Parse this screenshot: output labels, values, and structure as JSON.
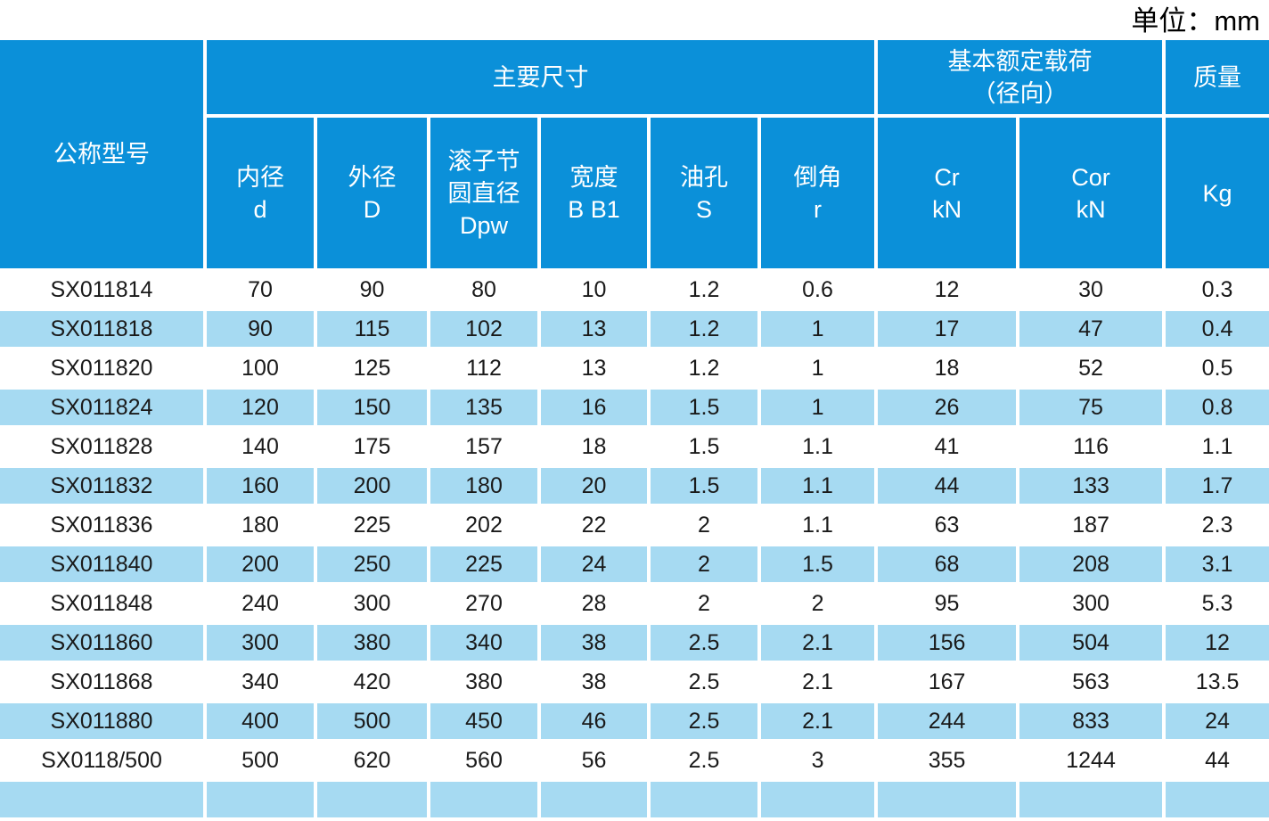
{
  "unit_label": "单位：mm",
  "colors": {
    "header_blue": "#0b90d9",
    "stripe_blue": "#a6daf2",
    "data_text": "#1a1a1a"
  },
  "table": {
    "header": {
      "model_label": "公称型号",
      "groups": [
        {
          "label": "主要尺寸"
        },
        {
          "label": "基本额定载荷（径向）",
          "lines": [
            "基本额定载荷",
            "（径向）"
          ]
        },
        {
          "label": "质量"
        }
      ],
      "sub_columns": [
        {
          "lines": [
            "内径",
            "d"
          ]
        },
        {
          "lines": [
            "外径",
            "D"
          ]
        },
        {
          "lines": [
            "滚子节",
            "圆直径",
            "Dpw"
          ]
        },
        {
          "lines": [
            "宽度",
            "B B1"
          ]
        },
        {
          "lines": [
            "油孔",
            "S"
          ]
        },
        {
          "lines": [
            "倒角",
            "r"
          ]
        },
        {
          "lines": [
            "Cr",
            "kN"
          ]
        },
        {
          "lines": [
            "Cor",
            "kN"
          ]
        },
        {
          "lines": [
            "Kg"
          ]
        }
      ]
    },
    "rows": [
      [
        "SX011814",
        "70",
        "90",
        "80",
        "10",
        "1.2",
        "0.6",
        "12",
        "30",
        "0.3"
      ],
      [
        "SX011818",
        "90",
        "115",
        "102",
        "13",
        "1.2",
        "1",
        "17",
        "47",
        "0.4"
      ],
      [
        "SX011820",
        "100",
        "125",
        "112",
        "13",
        "1.2",
        "1",
        "18",
        "52",
        "0.5"
      ],
      [
        "SX011824",
        "120",
        "150",
        "135",
        "16",
        "1.5",
        "1",
        "26",
        "75",
        "0.8"
      ],
      [
        "SX011828",
        "140",
        "175",
        "157",
        "18",
        "1.5",
        "1.1",
        "41",
        "116",
        "1.1"
      ],
      [
        "SX011832",
        "160",
        "200",
        "180",
        "20",
        "1.5",
        "1.1",
        "44",
        "133",
        "1.7"
      ],
      [
        "SX011836",
        "180",
        "225",
        "202",
        "22",
        "2",
        "1.1",
        "63",
        "187",
        "2.3"
      ],
      [
        "SX011840",
        "200",
        "250",
        "225",
        "24",
        "2",
        "1.5",
        "68",
        "208",
        "3.1"
      ],
      [
        "SX011848",
        "240",
        "300",
        "270",
        "28",
        "2",
        "2",
        "95",
        "300",
        "5.3"
      ],
      [
        "SX011860",
        "300",
        "380",
        "340",
        "38",
        "2.5",
        "2.1",
        "156",
        "504",
        "12"
      ],
      [
        "SX011868",
        "340",
        "420",
        "380",
        "38",
        "2.5",
        "2.1",
        "167",
        "563",
        "13.5"
      ],
      [
        "SX011880",
        "400",
        "500",
        "450",
        "46",
        "2.5",
        "2.1",
        "244",
        "833",
        "24"
      ],
      [
        "SX0118/500",
        "500",
        "620",
        "560",
        "56",
        "2.5",
        "3",
        "355",
        "1244",
        "44"
      ]
    ]
  }
}
